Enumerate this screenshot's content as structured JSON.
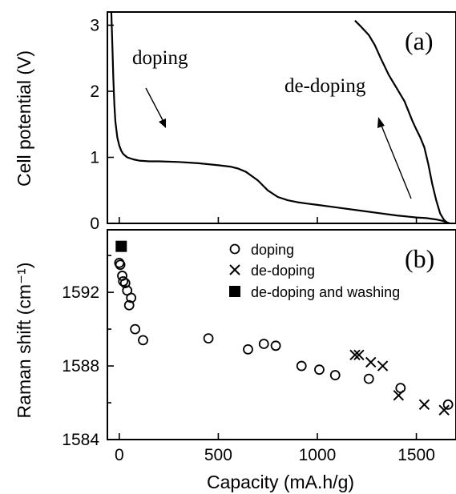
{
  "chart_data": [
    {
      "type": "line",
      "panel_label": "(a)",
      "ylabel": "Cell potential (V)",
      "xlabel": "",
      "xlim": [
        -60,
        1700
      ],
      "ylim": [
        0,
        3.2
      ],
      "x_ticks": [
        0,
        500,
        1000,
        1500
      ],
      "y_ticks": [
        0,
        1,
        2,
        3
      ],
      "y_tick_labels": [
        "0",
        "1",
        "2",
        "3"
      ],
      "annotations": [
        {
          "text": "doping"
        },
        {
          "text": "de-doping"
        }
      ],
      "series": [
        {
          "x": [
            -40,
            -35,
            -30,
            -25,
            -20,
            -10,
            0,
            10,
            20,
            40,
            70,
            100,
            150,
            200,
            300,
            400,
            500,
            560,
            600,
            640,
            700,
            750,
            800,
            850,
            900,
            950,
            1000,
            1100,
            1200,
            1300,
            1400,
            1500,
            1550,
            1600,
            1630,
            1650,
            1670
          ],
          "y": [
            3.2,
            2.7,
            2.2,
            1.8,
            1.55,
            1.3,
            1.18,
            1.1,
            1.05,
            1.0,
            0.97,
            0.95,
            0.94,
            0.94,
            0.93,
            0.91,
            0.88,
            0.86,
            0.83,
            0.78,
            0.65,
            0.5,
            0.4,
            0.35,
            0.32,
            0.3,
            0.28,
            0.24,
            0.2,
            0.16,
            0.12,
            0.09,
            0.08,
            0.06,
            0.04,
            0.02,
            0.0
          ]
        },
        {
          "x": [
            1190,
            1220,
            1260,
            1290,
            1320,
            1360,
            1400,
            1440,
            1460,
            1480,
            1500,
            1520,
            1540,
            1560,
            1580,
            1600,
            1620,
            1640,
            1660
          ],
          "y": [
            3.07,
            2.98,
            2.85,
            2.7,
            2.5,
            2.25,
            2.05,
            1.85,
            1.7,
            1.55,
            1.42,
            1.3,
            1.15,
            0.9,
            0.6,
            0.35,
            0.15,
            0.05,
            0.0
          ]
        }
      ]
    },
    {
      "type": "scatter",
      "panel_label": "(b)",
      "xlabel": "Capacity (mA.h/g)",
      "ylabel": "Raman shift (cm⁻¹)",
      "xlim": [
        -60,
        1700
      ],
      "ylim": [
        1584,
        1595.4
      ],
      "x_ticks": [
        0,
        500,
        1000,
        1500
      ],
      "x_tick_labels": [
        "0",
        "500",
        "1000",
        "1500"
      ],
      "y_ticks": [
        1584,
        1588,
        1592
      ],
      "y_tick_labels": [
        "1584",
        "1588",
        "1592"
      ],
      "legend_position": "top-center",
      "series": [
        {
          "name": "doping",
          "marker": "circle",
          "x": [
            0,
            5,
            15,
            20,
            30,
            40,
            50,
            60,
            80,
            120,
            450,
            650,
            730,
            790,
            920,
            1010,
            1090,
            1260,
            1420,
            1660
          ],
          "y": [
            1593.6,
            1593.5,
            1592.9,
            1592.6,
            1592.5,
            1592.1,
            1591.3,
            1591.7,
            1590.0,
            1589.4,
            1589.5,
            1588.9,
            1589.2,
            1589.1,
            1588.0,
            1587.8,
            1587.5,
            1587.3,
            1586.8,
            1585.9
          ]
        },
        {
          "name": "de-doping",
          "marker": "x",
          "x": [
            1190,
            1210,
            1270,
            1330,
            1410,
            1540,
            1640
          ],
          "y": [
            1588.6,
            1588.6,
            1588.2,
            1588.0,
            1586.4,
            1585.9,
            1585.6
          ]
        },
        {
          "name": "de-doping and washing",
          "marker": "filled-square",
          "x": [
            10
          ],
          "y": [
            1594.5
          ]
        }
      ]
    }
  ]
}
